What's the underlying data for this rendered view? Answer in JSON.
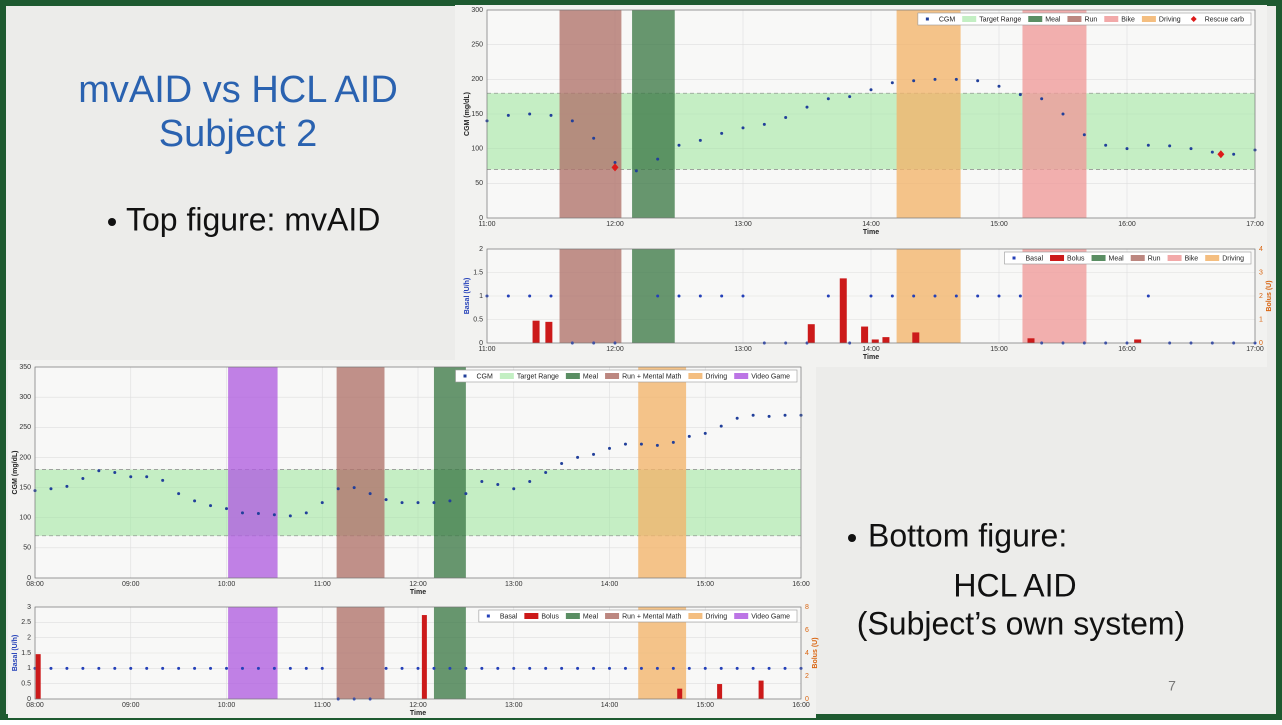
{
  "slide": {
    "title": [
      "mvAID vs HCL AID",
      "Subject 2"
    ],
    "bullets": [
      {
        "lines": [
          "Top figure: mvAID"
        ]
      },
      {
        "lines": [
          "Bottom figure:",
          "HCL AID",
          "(Subject’s own system)"
        ]
      }
    ],
    "page_number": 7
  },
  "chart_data": [
    {
      "type": "scatter",
      "xlabel": "Time",
      "ylabel": "CGM (mg/dL)",
      "grid": true,
      "legend": "upper right",
      "xlim": [
        660,
        1020
      ],
      "xticks": [
        {
          "value": 660,
          "label": "11:00"
        },
        {
          "value": 720,
          "label": "12:00"
        },
        {
          "value": 780,
          "label": "13:00"
        },
        {
          "value": 840,
          "label": "14:00"
        },
        {
          "value": 900,
          "label": "15:00"
        },
        {
          "value": 960,
          "label": "16:00"
        },
        {
          "value": 1020,
          "label": "17:00"
        }
      ],
      "ylim": [
        0,
        300
      ],
      "yticks": [
        0,
        50,
        100,
        150,
        200,
        250,
        300
      ],
      "target_range": {
        "name": "Target Range",
        "low": 70,
        "high": 180,
        "color": "#9be59b"
      },
      "regions": [
        {
          "name": "Meal",
          "color": "#3d7a48",
          "start": 728,
          "end": 748
        },
        {
          "name": "Run",
          "color": "#b0726a",
          "start": 694,
          "end": 723
        },
        {
          "name": "Bike",
          "color": "#f09a9a",
          "start": 911,
          "end": 941
        },
        {
          "name": "Driving",
          "color": "#f2b36a",
          "start": 852,
          "end": 882
        }
      ],
      "series": [
        {
          "name": "CGM",
          "color": "#213f9a",
          "marker": "dot",
          "x": [
            660,
            670,
            680,
            690,
            700,
            710,
            720,
            730,
            740,
            750,
            760,
            770,
            780,
            790,
            800,
            810,
            820,
            830,
            840,
            850,
            860,
            870,
            880,
            890,
            900,
            910,
            920,
            930,
            940,
            950,
            960,
            970,
            980,
            990,
            1000,
            1010,
            1020
          ],
          "values": [
            140,
            148,
            150,
            148,
            140,
            115,
            80,
            68,
            85,
            105,
            112,
            122,
            130,
            135,
            145,
            160,
            172,
            175,
            185,
            195,
            198,
            200,
            200,
            198,
            190,
            178,
            172,
            150,
            120,
            105,
            100,
            105,
            104,
            100,
            95,
            92,
            98
          ]
        },
        {
          "name": "Rescue carb",
          "color": "#dd1a1a",
          "marker": "diamond",
          "legend_last": true,
          "x": [
            720,
            1004
          ],
          "values": [
            73,
            92
          ]
        }
      ]
    },
    {
      "type": "bar",
      "xlabel": "Time",
      "ylabel": "Basal (U/h)",
      "y2label": "Bolus (U)",
      "grid": true,
      "legend": "upper right",
      "xlim": [
        660,
        1020
      ],
      "xticks": [
        {
          "value": 660,
          "label": "11:00"
        },
        {
          "value": 720,
          "label": "12:00"
        },
        {
          "value": 780,
          "label": "13:00"
        },
        {
          "value": 840,
          "label": "14:00"
        },
        {
          "value": 900,
          "label": "15:00"
        },
        {
          "value": 960,
          "label": "16:00"
        },
        {
          "value": 1020,
          "label": "17:00"
        }
      ],
      "ylim": [
        0,
        2
      ],
      "yticks": [
        0,
        0.5,
        1,
        1.5,
        2
      ],
      "y2lim": [
        0,
        4
      ],
      "y2ticks": [
        0,
        1,
        2,
        3,
        4
      ],
      "regions": [
        {
          "name": "Meal",
          "color": "#3d7a48",
          "start": 728,
          "end": 748
        },
        {
          "name": "Run",
          "color": "#b0726a",
          "start": 694,
          "end": 723
        },
        {
          "name": "Bike",
          "color": "#f09a9a",
          "start": 911,
          "end": 941
        },
        {
          "name": "Driving",
          "color": "#f2b36a",
          "start": 852,
          "end": 882
        }
      ],
      "series": [
        {
          "name": "Basal",
          "color": "#2440b8",
          "marker": "dot",
          "x": [
            660,
            670,
            680,
            690,
            700,
            710,
            720,
            730,
            740,
            750,
            760,
            770,
            780,
            790,
            800,
            810,
            820,
            830,
            840,
            850,
            860,
            870,
            880,
            890,
            900,
            910,
            920,
            930,
            940,
            950,
            960,
            970,
            980,
            990,
            1000,
            1010,
            1020
          ],
          "values": [
            1,
            1,
            1,
            1,
            0,
            0,
            0,
            null,
            1,
            1,
            1,
            1,
            1,
            0,
            0,
            0,
            1,
            0,
            1,
            1,
            1,
            1,
            1,
            1,
            1,
            1,
            0,
            0,
            0,
            0,
            0,
            1,
            0,
            0,
            0,
            0,
            0
          ]
        },
        {
          "name": "Bolus",
          "color": "#cc1a1a",
          "marker": "bar",
          "axis": "y2",
          "x": [
            683,
            689,
            812,
            827,
            837,
            842,
            847,
            861,
            915,
            965
          ],
          "values": [
            0.95,
            0.9,
            0.8,
            2.75,
            0.7,
            0.15,
            0.25,
            0.45,
            0.2,
            0.15
          ]
        }
      ]
    },
    {
      "type": "scatter",
      "xlabel": "Time",
      "ylabel": "CGM (mg/dL)",
      "grid": true,
      "legend": "upper right",
      "xlim": [
        480,
        960
      ],
      "xticks": [
        {
          "value": 480,
          "label": "08:00"
        },
        {
          "value": 540,
          "label": "09:00"
        },
        {
          "value": 600,
          "label": "10:00"
        },
        {
          "value": 660,
          "label": "11:00"
        },
        {
          "value": 720,
          "label": "12:00"
        },
        {
          "value": 780,
          "label": "13:00"
        },
        {
          "value": 840,
          "label": "14:00"
        },
        {
          "value": 900,
          "label": "15:00"
        },
        {
          "value": 960,
          "label": "16:00"
        }
      ],
      "ylim": [
        0,
        350
      ],
      "yticks": [
        0,
        50,
        100,
        150,
        200,
        250,
        300,
        350
      ],
      "target_range": {
        "name": "Target Range",
        "low": 70,
        "high": 180,
        "color": "#9be59b"
      },
      "regions": [
        {
          "name": "Meal",
          "color": "#3d7a48",
          "start": 730,
          "end": 750
        },
        {
          "name": "Run + Mental Math",
          "color": "#b0726a",
          "start": 669,
          "end": 699
        },
        {
          "name": "Driving",
          "color": "#f2b36a",
          "start": 858,
          "end": 888
        },
        {
          "name": "Video Game",
          "color": "#b05de0",
          "start": 601,
          "end": 632
        }
      ],
      "series": [
        {
          "name": "CGM",
          "color": "#213f9a",
          "marker": "dot",
          "x": [
            480,
            490,
            500,
            510,
            520,
            530,
            540,
            550,
            560,
            570,
            580,
            590,
            600,
            610,
            620,
            630,
            640,
            650,
            660,
            670,
            680,
            690,
            700,
            710,
            720,
            730,
            740,
            750,
            760,
            770,
            780,
            790,
            800,
            810,
            820,
            830,
            840,
            850,
            860,
            870,
            880,
            890,
            900,
            910,
            920,
            930,
            940,
            950,
            960
          ],
          "values": [
            145,
            148,
            152,
            165,
            178,
            175,
            168,
            168,
            162,
            140,
            128,
            120,
            115,
            108,
            107,
            105,
            103,
            108,
            125,
            148,
            150,
            140,
            130,
            125,
            125,
            125,
            128,
            140,
            160,
            155,
            148,
            160,
            175,
            190,
            200,
            205,
            215,
            222,
            222,
            220,
            225,
            235,
            240,
            252,
            265,
            270,
            268,
            270,
            270
          ]
        }
      ]
    },
    {
      "type": "bar",
      "xlabel": "Time",
      "ylabel": "Basal (U/h)",
      "y2label": "Bolus (U)",
      "grid": true,
      "legend": "upper right",
      "xlim": [
        480,
        960
      ],
      "xticks": [
        {
          "value": 480,
          "label": "08:00"
        },
        {
          "value": 540,
          "label": "09:00"
        },
        {
          "value": 600,
          "label": "10:00"
        },
        {
          "value": 660,
          "label": "11:00"
        },
        {
          "value": 720,
          "label": "12:00"
        },
        {
          "value": 780,
          "label": "13:00"
        },
        {
          "value": 840,
          "label": "14:00"
        },
        {
          "value": 900,
          "label": "15:00"
        },
        {
          "value": 960,
          "label": "16:00"
        }
      ],
      "ylim": [
        0,
        3
      ],
      "yticks": [
        0,
        0.5,
        1,
        1.5,
        2,
        2.5,
        3
      ],
      "y2lim": [
        0,
        8
      ],
      "y2ticks": [
        0,
        2,
        4,
        6,
        8
      ],
      "regions": [
        {
          "name": "Meal",
          "color": "#3d7a48",
          "start": 730,
          "end": 750
        },
        {
          "name": "Run + Mental Math",
          "color": "#b0726a",
          "start": 669,
          "end": 699
        },
        {
          "name": "Driving",
          "color": "#f2b36a",
          "start": 858,
          "end": 888
        },
        {
          "name": "Video Game",
          "color": "#b05de0",
          "start": 601,
          "end": 632
        }
      ],
      "series": [
        {
          "name": "Basal",
          "color": "#2440b8",
          "marker": "dot",
          "x": [
            480,
            490,
            500,
            510,
            520,
            530,
            540,
            550,
            560,
            570,
            580,
            590,
            600,
            610,
            620,
            630,
            640,
            650,
            660,
            670,
            680,
            690,
            700,
            710,
            720,
            730,
            740,
            750,
            760,
            770,
            780,
            790,
            800,
            810,
            820,
            830,
            840,
            850,
            860,
            870,
            880,
            890,
            900,
            910,
            920,
            930,
            940,
            950,
            960
          ],
          "values": [
            1,
            1,
            1,
            1,
            1,
            1,
            1,
            1,
            1,
            1,
            1,
            1,
            1,
            1,
            1,
            1,
            1,
            1,
            1,
            0,
            0,
            0,
            1,
            1,
            1,
            1,
            1,
            1,
            1,
            1,
            1,
            1,
            1,
            1,
            1,
            1,
            1,
            1,
            1,
            1,
            1,
            1,
            1,
            1,
            1,
            1,
            1,
            1,
            1
          ]
        },
        {
          "name": "Bolus",
          "color": "#cc1a1a",
          "marker": "bar",
          "axis": "y2",
          "x": [
            482,
            724,
            884,
            909,
            935
          ],
          "values": [
            3.9,
            7.3,
            0.9,
            1.3,
            1.6
          ]
        }
      ]
    }
  ]
}
